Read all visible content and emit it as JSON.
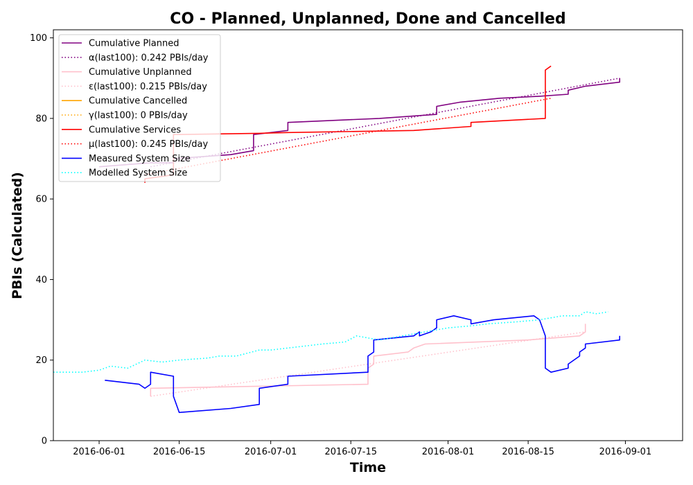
{
  "chart_data": {
    "type": "line",
    "title": "CO - Planned, Unplanned, Done  and Cancelled",
    "xlabel": "Time",
    "ylabel": "PBIs (Calculated)",
    "xlim": [
      "2016-05-24",
      "2016-09-11"
    ],
    "ylim": [
      0,
      102
    ],
    "x_ticks": [
      "2016-06-01",
      "2016-06-15",
      "2016-07-01",
      "2016-07-15",
      "2016-08-01",
      "2016-08-15",
      "2016-09-01"
    ],
    "y_ticks": [
      0,
      20,
      40,
      60,
      80,
      100
    ],
    "grid": false,
    "legend_position": "top-left",
    "series": [
      {
        "name": "Cumulative Planned",
        "color": "#800080",
        "style": "solid",
        "points": [
          [
            "2016-06-01",
            68
          ],
          [
            "2016-06-10",
            69
          ],
          [
            "2016-06-14",
            69
          ],
          [
            "2016-06-14",
            70
          ],
          [
            "2016-06-24",
            71
          ],
          [
            "2016-06-28",
            72
          ],
          [
            "2016-06-28",
            76
          ],
          [
            "2016-07-04",
            77
          ],
          [
            "2016-07-04",
            79
          ],
          [
            "2016-07-20",
            80
          ],
          [
            "2016-07-30",
            81
          ],
          [
            "2016-07-30",
            83
          ],
          [
            "2016-08-03",
            84
          ],
          [
            "2016-08-10",
            85
          ],
          [
            "2016-08-17",
            85.5
          ],
          [
            "2016-08-22",
            86
          ],
          [
            "2016-08-22",
            87
          ],
          [
            "2016-08-25",
            88
          ],
          [
            "2016-08-31",
            89
          ],
          [
            "2016-08-31",
            90
          ]
        ]
      },
      {
        "name": "α(last100): 0.242 PBIs/day",
        "color": "#800080",
        "style": "dotted",
        "points": [
          [
            "2016-06-10",
            68
          ],
          [
            "2016-08-31",
            90
          ]
        ]
      },
      {
        "name": "Cumulative Unplanned",
        "color": "#ffc0cb",
        "style": "solid",
        "points": [
          [
            "2016-06-10",
            11
          ],
          [
            "2016-06-10",
            13
          ],
          [
            "2016-07-18",
            14
          ],
          [
            "2016-07-18",
            18
          ],
          [
            "2016-07-19",
            19
          ],
          [
            "2016-07-19",
            21
          ],
          [
            "2016-07-25",
            22
          ],
          [
            "2016-07-26",
            23
          ],
          [
            "2016-07-28",
            24
          ],
          [
            "2016-08-15",
            25
          ],
          [
            "2016-08-24",
            26
          ],
          [
            "2016-08-25",
            27
          ],
          [
            "2016-08-25",
            29
          ]
        ]
      },
      {
        "name": "ε(last100): 0.215 PBIs/day",
        "color": "#ffc0cb",
        "style": "dotted",
        "points": [
          [
            "2016-06-10",
            11
          ],
          [
            "2016-08-25",
            27
          ]
        ]
      },
      {
        "name": "Cumulative Cancelled",
        "color": "#ffa500",
        "style": "solid",
        "points": []
      },
      {
        "name": "γ(last100): 0 PBIs/day",
        "color": "#ffa500",
        "style": "dotted",
        "points": []
      },
      {
        "name": "Cumulative Services",
        "color": "#ff0000",
        "style": "solid",
        "points": [
          [
            "2016-06-09",
            64
          ],
          [
            "2016-06-09",
            65
          ],
          [
            "2016-06-14",
            66
          ],
          [
            "2016-06-14",
            76
          ],
          [
            "2016-06-29",
            76.3
          ],
          [
            "2016-07-04",
            76.5
          ],
          [
            "2016-07-26",
            77
          ],
          [
            "2016-08-05",
            78
          ],
          [
            "2016-08-05",
            79
          ],
          [
            "2016-08-18",
            80
          ],
          [
            "2016-08-18",
            85
          ],
          [
            "2016-08-18",
            92
          ],
          [
            "2016-08-19",
            93
          ]
        ]
      },
      {
        "name": "μ(last100): 0.245 PBIs/day",
        "color": "#ff0000",
        "style": "dotted",
        "points": [
          [
            "2016-06-09",
            66
          ],
          [
            "2016-08-19",
            85
          ]
        ]
      },
      {
        "name": "Measured System Size",
        "color": "#0000ff",
        "style": "solid",
        "points": [
          [
            "2016-06-02",
            15
          ],
          [
            "2016-06-08",
            14
          ],
          [
            "2016-06-09",
            13
          ],
          [
            "2016-06-10",
            14
          ],
          [
            "2016-06-10",
            17
          ],
          [
            "2016-06-14",
            16
          ],
          [
            "2016-06-14",
            11
          ],
          [
            "2016-06-15",
            7
          ],
          [
            "2016-06-24",
            8
          ],
          [
            "2016-06-29",
            9
          ],
          [
            "2016-06-29",
            13
          ],
          [
            "2016-07-04",
            14
          ],
          [
            "2016-07-04",
            16
          ],
          [
            "2016-07-18",
            17
          ],
          [
            "2016-07-18",
            21
          ],
          [
            "2016-07-19",
            22
          ],
          [
            "2016-07-19",
            25
          ],
          [
            "2016-07-26",
            26
          ],
          [
            "2016-07-27",
            27
          ],
          [
            "2016-07-27",
            26
          ],
          [
            "2016-07-29",
            27
          ],
          [
            "2016-07-30",
            28
          ],
          [
            "2016-07-30",
            30
          ],
          [
            "2016-08-02",
            31
          ],
          [
            "2016-08-05",
            30
          ],
          [
            "2016-08-05",
            29
          ],
          [
            "2016-08-09",
            30
          ],
          [
            "2016-08-16",
            31
          ],
          [
            "2016-08-17",
            30
          ],
          [
            "2016-08-18",
            26
          ],
          [
            "2016-08-18",
            18
          ],
          [
            "2016-08-19",
            17
          ],
          [
            "2016-08-22",
            18
          ],
          [
            "2016-08-22",
            19
          ],
          [
            "2016-08-24",
            21
          ],
          [
            "2016-08-24",
            22
          ],
          [
            "2016-08-25",
            23
          ],
          [
            "2016-08-25",
            24
          ],
          [
            "2016-08-31",
            25
          ],
          [
            "2016-08-31",
            26
          ]
        ]
      },
      {
        "name": "Modelled System Size",
        "color": "#00ffff",
        "style": "dotted",
        "points": [
          [
            "2016-05-24",
            17
          ],
          [
            "2016-05-29",
            17
          ],
          [
            "2016-06-01",
            17.5
          ],
          [
            "2016-06-03",
            18.5
          ],
          [
            "2016-06-06",
            18
          ],
          [
            "2016-06-09",
            20
          ],
          [
            "2016-06-12",
            19.5
          ],
          [
            "2016-06-15",
            20
          ],
          [
            "2016-06-20",
            20.5
          ],
          [
            "2016-06-22",
            21
          ],
          [
            "2016-06-25",
            21
          ],
          [
            "2016-06-29",
            22.5
          ],
          [
            "2016-07-01",
            22.5
          ],
          [
            "2016-07-04",
            23
          ],
          [
            "2016-07-07",
            23.5
          ],
          [
            "2016-07-10",
            24
          ],
          [
            "2016-07-14",
            24.5
          ],
          [
            "2016-07-16",
            26
          ],
          [
            "2016-07-20",
            25
          ],
          [
            "2016-07-24",
            26
          ],
          [
            "2016-07-28",
            27
          ],
          [
            "2016-08-01",
            28
          ],
          [
            "2016-08-05",
            28.5
          ],
          [
            "2016-08-08",
            29
          ],
          [
            "2016-08-13",
            29.5
          ],
          [
            "2016-08-17",
            30
          ],
          [
            "2016-08-21",
            31
          ],
          [
            "2016-08-24",
            31
          ],
          [
            "2016-08-25",
            32
          ],
          [
            "2016-08-27",
            31.5
          ],
          [
            "2016-08-29",
            32
          ]
        ]
      }
    ]
  }
}
